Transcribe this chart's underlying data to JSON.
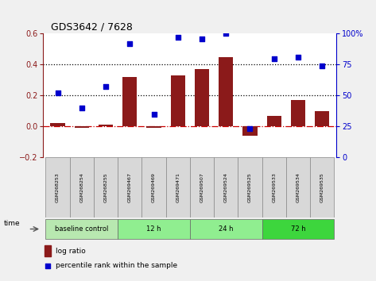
{
  "title": "GDS3642 / 7628",
  "categories": [
    "GSM268253",
    "GSM268254",
    "GSM268255",
    "GSM269467",
    "GSM269469",
    "GSM269471",
    "GSM269507",
    "GSM269524",
    "GSM269525",
    "GSM269533",
    "GSM269534",
    "GSM269535"
  ],
  "log_ratio": [
    0.02,
    -0.01,
    0.01,
    0.32,
    -0.01,
    0.33,
    0.37,
    0.45,
    -0.06,
    0.07,
    0.17,
    0.1
  ],
  "percentile_rank": [
    52,
    40,
    57,
    92,
    35,
    97,
    96,
    100,
    23,
    80,
    81,
    74
  ],
  "percentile_scale_max": 100,
  "log_ratio_ylim": [
    -0.2,
    0.6
  ],
  "log_ratio_yticks": [
    -0.2,
    0.0,
    0.2,
    0.4,
    0.6
  ],
  "percentile_yticks": [
    0,
    25,
    50,
    75,
    100
  ],
  "percentile_yticklabels": [
    "0",
    "25",
    "50",
    "75",
    "100%"
  ],
  "dotted_lines": [
    0.2,
    0.4
  ],
  "bar_color": "#8B1A1A",
  "dot_color": "#0000CC",
  "zero_line_color": "#CC0000",
  "groups": [
    {
      "label": "baseline control",
      "start": 0,
      "end": 3,
      "color": "#b8e8b0"
    },
    {
      "label": "12 h",
      "start": 3,
      "end": 6,
      "color": "#90ee90"
    },
    {
      "label": "24 h",
      "start": 6,
      "end": 9,
      "color": "#90ee90"
    },
    {
      "label": "72 h",
      "start": 9,
      "end": 12,
      "color": "#3dd63d"
    }
  ],
  "time_label": "time",
  "legend_bar_label": "log ratio",
  "legend_dot_label": "percentile rank within the sample",
  "background_color": "#f0f0f0",
  "plot_bg_color": "#ffffff",
  "sample_box_color": "#d8d8d8"
}
